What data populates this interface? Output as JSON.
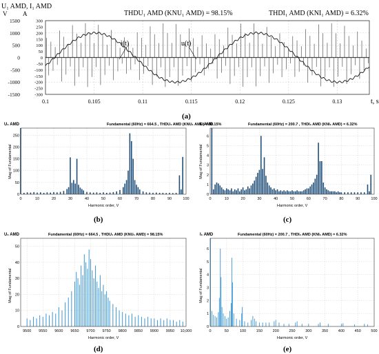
{
  "chart_data": [
    {
      "id": "a",
      "type": "line",
      "panel_label": "(a)",
      "title_left": "THDU₁ AMD (KNU₁ AMD) = 98.15%",
      "title_right": "THDI₁ AMD (KNI₁ AMD) = 6.32%",
      "ylabel_top": "U₁ AMD, I₁ AMD",
      "ylabel_left_unit": "V",
      "ylabel_right_unit": "A",
      "xlabel": "t, s",
      "xlim": [
        0.1,
        0.1333
      ],
      "xticks": [
        "0.1",
        "0.105",
        "0.11",
        "0.115",
        "0.12",
        "0.125",
        "0.13"
      ],
      "y_left_ticks": [
        1500,
        1000,
        500,
        0,
        -500,
        -1000,
        -1500
      ],
      "y_right_ticks": [
        300,
        250,
        200,
        150,
        100,
        50,
        0,
        -50,
        -100,
        -150,
        -200,
        -250,
        -300
      ],
      "y_left_lim": [
        -1500,
        1500
      ],
      "series": [
        {
          "name": "i(t)",
          "amplitude_A": 200.7,
          "frequency_hz": 60,
          "phase_deg": -20
        },
        {
          "name": "u(t)",
          "fundamental_V": 664.5,
          "pwm_levels_V": [
            1400,
            1200,
            1000,
            800,
            600,
            400
          ]
        }
      ],
      "annotations": [
        "i(t)",
        "u(t)"
      ]
    },
    {
      "id": "b",
      "type": "bar",
      "panel_label": "(b)",
      "title": "Fundamental (60Hz) = 664.5 , THDU₁ AMD (KNU₁ AMD) = 98.15%",
      "ylabel_top": "U₁ AMD",
      "ylabel": "Mag of Fundamental",
      "xlabel": "Harmonic order, V",
      "xlim": [
        0,
        100
      ],
      "ylim": [
        0,
        280
      ],
      "xticks": [
        0,
        10,
        20,
        30,
        40,
        50,
        60,
        70,
        80,
        90,
        100
      ],
      "yticks": [
        0,
        50,
        100,
        150,
        200,
        250
      ],
      "bars": [
        [
          0,
          280
        ],
        [
          2,
          6
        ],
        [
          4,
          8
        ],
        [
          6,
          7
        ],
        [
          8,
          9
        ],
        [
          10,
          7
        ],
        [
          12,
          8
        ],
        [
          14,
          6
        ],
        [
          16,
          8
        ],
        [
          18,
          7
        ],
        [
          20,
          9
        ],
        [
          22,
          8
        ],
        [
          24,
          10
        ],
        [
          26,
          14
        ],
        [
          28,
          22
        ],
        [
          29,
          30
        ],
        [
          30,
          156
        ],
        [
          31,
          48
        ],
        [
          32,
          60
        ],
        [
          33,
          45
        ],
        [
          34,
          150
        ],
        [
          35,
          40
        ],
        [
          36,
          28
        ],
        [
          37,
          22
        ],
        [
          38,
          16
        ],
        [
          40,
          10
        ],
        [
          42,
          8
        ],
        [
          44,
          7
        ],
        [
          46,
          8
        ],
        [
          48,
          6
        ],
        [
          50,
          8
        ],
        [
          52,
          6
        ],
        [
          54,
          7
        ],
        [
          56,
          9
        ],
        [
          58,
          12
        ],
        [
          60,
          18
        ],
        [
          62,
          30
        ],
        [
          63,
          45
        ],
        [
          64,
          60
        ],
        [
          65,
          100
        ],
        [
          66,
          258
        ],
        [
          67,
          225
        ],
        [
          68,
          150
        ],
        [
          69,
          60
        ],
        [
          70,
          40
        ],
        [
          71,
          30
        ],
        [
          72,
          20
        ],
        [
          74,
          12
        ],
        [
          76,
          8
        ],
        [
          78,
          7
        ],
        [
          80,
          6
        ],
        [
          82,
          7
        ],
        [
          84,
          6
        ],
        [
          86,
          6
        ],
        [
          88,
          5
        ],
        [
          90,
          6
        ],
        [
          92,
          5
        ],
        [
          94,
          6
        ],
        [
          96,
          80
        ],
        [
          97,
          20
        ],
        [
          98,
          158
        ]
      ]
    },
    {
      "id": "c",
      "type": "bar",
      "panel_label": "(c)",
      "title": "Fundamental (60Hz) = 200.7 , THDI₁ AMD (KNI₁ AMD) = 6.32%",
      "ylabel_top": "I₁ AMD",
      "ylabel": "Mag of Fundamental",
      "xlabel": "Harmonic order, V",
      "xlim": [
        0,
        100
      ],
      "ylim": [
        0,
        6.8
      ],
      "xticks": [
        0,
        10,
        20,
        30,
        40,
        50,
        60,
        70,
        80,
        90,
        100
      ],
      "yticks": [
        0,
        1,
        2,
        3,
        4,
        5,
        6
      ],
      "bars": [
        [
          1,
          6.8
        ],
        [
          2,
          0.5
        ],
        [
          3,
          1.0
        ],
        [
          4,
          1.2
        ],
        [
          5,
          1.1
        ],
        [
          6,
          0.9
        ],
        [
          7,
          0.7
        ],
        [
          8,
          0.5
        ],
        [
          9,
          0.4
        ],
        [
          10,
          0.6
        ],
        [
          11,
          0.5
        ],
        [
          12,
          0.4
        ],
        [
          13,
          0.6
        ],
        [
          14,
          0.3
        ],
        [
          15,
          0.5
        ],
        [
          16,
          0.4
        ],
        [
          17,
          0.6
        ],
        [
          18,
          0.3
        ],
        [
          19,
          0.5
        ],
        [
          20,
          0.7
        ],
        [
          21,
          0.4
        ],
        [
          22,
          0.5
        ],
        [
          23,
          0.8
        ],
        [
          24,
          0.6
        ],
        [
          25,
          0.9
        ],
        [
          26,
          1.1
        ],
        [
          27,
          1.4
        ],
        [
          28,
          1.8
        ],
        [
          29,
          2.2
        ],
        [
          30,
          2.5
        ],
        [
          31,
          6.0
        ],
        [
          32,
          2.6
        ],
        [
          33,
          3.8
        ],
        [
          34,
          1.9
        ],
        [
          35,
          1.2
        ],
        [
          36,
          0.9
        ],
        [
          37,
          0.7
        ],
        [
          38,
          0.5
        ],
        [
          39,
          0.6
        ],
        [
          40,
          0.4
        ],
        [
          41,
          0.5
        ],
        [
          42,
          0.3
        ],
        [
          43,
          0.4
        ],
        [
          44,
          0.3
        ],
        [
          45,
          0.4
        ],
        [
          46,
          0.3
        ],
        [
          47,
          0.4
        ],
        [
          48,
          0.3
        ],
        [
          49,
          0.3
        ],
        [
          50,
          0.4
        ],
        [
          51,
          0.3
        ],
        [
          52,
          0.3
        ],
        [
          53,
          0.4
        ],
        [
          54,
          0.3
        ],
        [
          55,
          0.3
        ],
        [
          56,
          0.3
        ],
        [
          57,
          0.4
        ],
        [
          58,
          0.5
        ],
        [
          59,
          0.6
        ],
        [
          60,
          0.6
        ],
        [
          61,
          0.8
        ],
        [
          62,
          1.0
        ],
        [
          63,
          1.2
        ],
        [
          64,
          1.6
        ],
        [
          65,
          2.0
        ],
        [
          66,
          5.3
        ],
        [
          67,
          3.4
        ],
        [
          68,
          3.4
        ],
        [
          69,
          1.2
        ],
        [
          70,
          0.7
        ],
        [
          71,
          0.5
        ],
        [
          72,
          0.4
        ],
        [
          73,
          0.3
        ],
        [
          74,
          0.3
        ],
        [
          75,
          0.3
        ],
        [
          76,
          0.3
        ],
        [
          77,
          0.2
        ],
        [
          78,
          0.3
        ],
        [
          79,
          0.2
        ],
        [
          80,
          0.2
        ],
        [
          82,
          0.2
        ],
        [
          84,
          0.2
        ],
        [
          86,
          0.2
        ],
        [
          88,
          0.2
        ],
        [
          90,
          0.2
        ],
        [
          92,
          0.2
        ],
        [
          94,
          0.2
        ],
        [
          96,
          1.0
        ],
        [
          97,
          0.3
        ],
        [
          98,
          2.0
        ]
      ]
    },
    {
      "id": "d",
      "type": "bar",
      "panel_label": "(d)",
      "title": "Fundamental (60Hz) = 664.5 , THDU₁ AMD (KNU₁ AMD) = 98.15%",
      "ylabel_top": "U₁ AMD",
      "ylabel": "Mag of Fundamental",
      "xlabel": "Harmonic order, V",
      "xlim": [
        9480,
        10000
      ],
      "ylim": [
        0,
        55
      ],
      "xticks": [
        "9500",
        "9550",
        "9600",
        "9650",
        "9700",
        "9750",
        "9800",
        "9850",
        "9900",
        "9950",
        "10,000"
      ],
      "yticks": [
        0,
        10,
        20,
        30,
        40,
        50
      ],
      "bars": [
        [
          9500,
          5
        ],
        [
          9510,
          4
        ],
        [
          9520,
          6
        ],
        [
          9530,
          5
        ],
        [
          9540,
          7
        ],
        [
          9550,
          6
        ],
        [
          9560,
          8
        ],
        [
          9570,
          7
        ],
        [
          9580,
          9
        ],
        [
          9590,
          8
        ],
        [
          9600,
          12
        ],
        [
          9610,
          10
        ],
        [
          9620,
          15
        ],
        [
          9630,
          18
        ],
        [
          9640,
          22
        ],
        [
          9650,
          28
        ],
        [
          9655,
          34
        ],
        [
          9660,
          30
        ],
        [
          9665,
          26
        ],
        [
          9670,
          38
        ],
        [
          9675,
          32
        ],
        [
          9680,
          45
        ],
        [
          9685,
          40
        ],
        [
          9690,
          36
        ],
        [
          9695,
          48
        ],
        [
          9700,
          42
        ],
        [
          9705,
          35
        ],
        [
          9710,
          30
        ],
        [
          9715,
          38
        ],
        [
          9720,
          28
        ],
        [
          9725,
          24
        ],
        [
          9730,
          32
        ],
        [
          9735,
          22
        ],
        [
          9740,
          26
        ],
        [
          9745,
          20
        ],
        [
          9750,
          22
        ],
        [
          9755,
          18
        ],
        [
          9760,
          16
        ],
        [
          9770,
          14
        ],
        [
          9780,
          12
        ],
        [
          9790,
          10
        ],
        [
          9800,
          9
        ],
        [
          9810,
          8
        ],
        [
          9820,
          7
        ],
        [
          9830,
          8
        ],
        [
          9840,
          6
        ],
        [
          9850,
          7
        ],
        [
          9860,
          6
        ],
        [
          9870,
          5
        ],
        [
          9880,
          6
        ],
        [
          9890,
          5
        ],
        [
          9900,
          5
        ],
        [
          9910,
          4
        ],
        [
          9920,
          5
        ],
        [
          9930,
          4
        ],
        [
          9940,
          5
        ],
        [
          9950,
          4
        ],
        [
          9960,
          4
        ],
        [
          9970,
          3
        ],
        [
          9980,
          4
        ],
        [
          9990,
          3
        ]
      ]
    },
    {
      "id": "e",
      "type": "bar",
      "panel_label": "(e)",
      "title": "Fundamental (60Hz) = 200.7 , THDI₁ AMD (KNI₁ AMD) = 6.32%",
      "ylabel_top": "I₁ AMD",
      "ylabel": "Mag of Fundamental",
      "xlabel": "Harmonic order, V",
      "xlim": [
        0,
        500
      ],
      "ylim": [
        0,
        6.8
      ],
      "xticks": [
        0,
        50,
        100,
        150,
        200,
        250,
        300,
        350,
        400,
        450,
        500
      ],
      "yticks": [
        0,
        1,
        2,
        3,
        4,
        5,
        6
      ],
      "bars": [
        [
          1,
          6.8
        ],
        [
          5,
          1.2
        ],
        [
          10,
          0.9
        ],
        [
          15,
          0.8
        ],
        [
          20,
          0.7
        ],
        [
          25,
          1.1
        ],
        [
          28,
          2.2
        ],
        [
          31,
          6.0
        ],
        [
          33,
          3.8
        ],
        [
          36,
          1.5
        ],
        [
          40,
          1.0
        ],
        [
          45,
          0.8
        ],
        [
          50,
          0.6
        ],
        [
          55,
          0.7
        ],
        [
          60,
          1.2
        ],
        [
          64,
          1.8
        ],
        [
          66,
          5.3
        ],
        [
          68,
          3.4
        ],
        [
          72,
          1.0
        ],
        [
          80,
          0.6
        ],
        [
          90,
          0.5
        ],
        [
          96,
          1.0
        ],
        [
          98,
          1.5
        ],
        [
          105,
          0.4
        ],
        [
          115,
          0.3
        ],
        [
          125,
          0.5
        ],
        [
          130,
          0.8
        ],
        [
          135,
          0.6
        ],
        [
          140,
          0.4
        ],
        [
          150,
          0.3
        ],
        [
          160,
          0.3
        ],
        [
          170,
          0.3
        ],
        [
          180,
          0.3
        ],
        [
          195,
          0.4
        ],
        [
          200,
          0.5
        ],
        [
          210,
          0.3
        ],
        [
          225,
          0.2
        ],
        [
          240,
          0.2
        ],
        [
          260,
          0.3
        ],
        [
          265,
          0.4
        ],
        [
          280,
          0.2
        ],
        [
          300,
          0.2
        ],
        [
          330,
          0.2
        ],
        [
          335,
          0.3
        ],
        [
          360,
          0.2
        ],
        [
          400,
          0.2
        ],
        [
          405,
          0.25
        ],
        [
          440,
          0.15
        ],
        [
          470,
          0.2
        ],
        [
          480,
          0.15
        ]
      ]
    }
  ]
}
